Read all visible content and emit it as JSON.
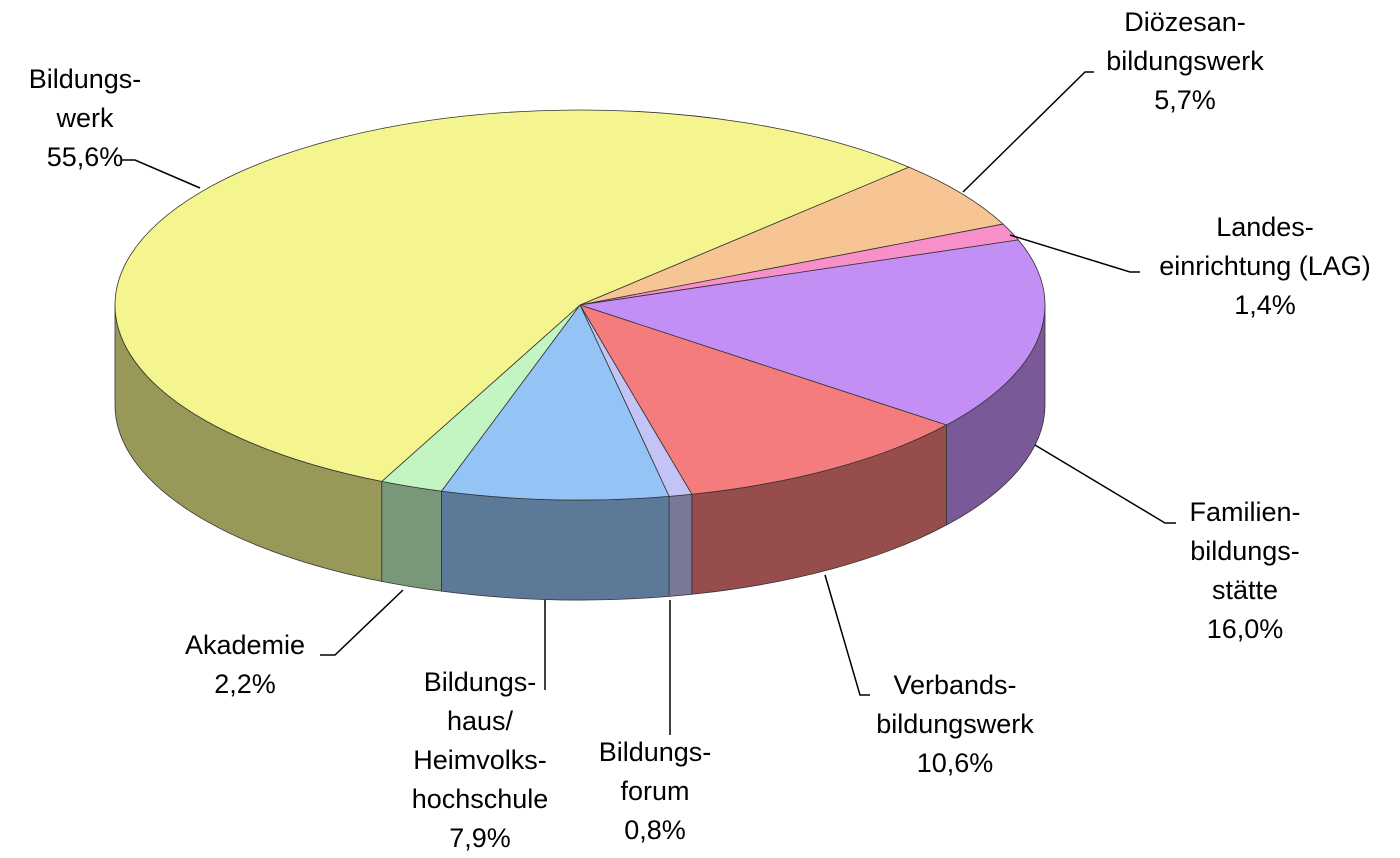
{
  "chart_data": {
    "type": "pie3d",
    "categories": [
      "Diözesan-\nbildungswerk",
      "Landes-\neinrichtung (LAG)",
      "Familien-\nbildungs-\nstätte",
      "Verbands-\nbildungswerk",
      "Bildungs-\nforum",
      "Bildungs-\nhaus/\nHeimvolks-\nhochschule",
      "Akademie",
      "Bildungs-\nwerk"
    ],
    "values": [
      5.7,
      1.4,
      16.0,
      10.6,
      0.8,
      7.9,
      2.2,
      55.6
    ],
    "value_labels": [
      "5,7%",
      "1,4%",
      "16,0%",
      "10,6%",
      "0,8%",
      "7,9%",
      "2,2%",
      "55,6%"
    ],
    "colors": [
      "#f7c594",
      "#f78fc8",
      "#c38ff5",
      "#f57c7c",
      "#c3c3f5",
      "#94c3f5",
      "#c3f5c3",
      "#f5f58f"
    ]
  }
}
